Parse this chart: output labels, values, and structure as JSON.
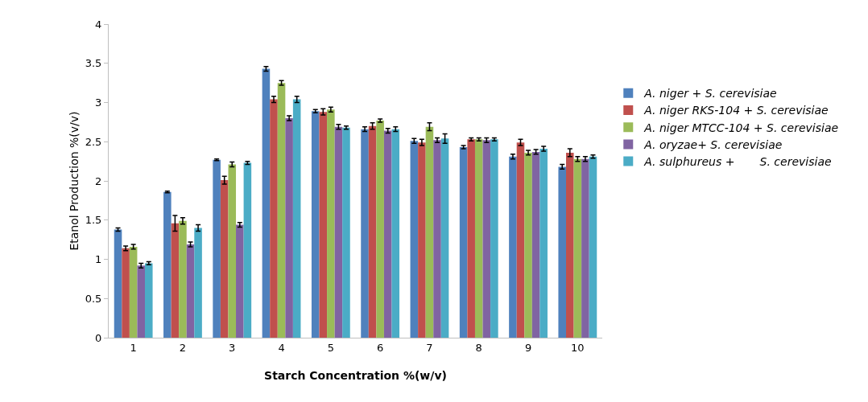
{
  "chart_data": {
    "type": "bar",
    "xlabel": "Starch Concentration %(w/v)",
    "ylabel": "Etanol Production %(v/v)",
    "categories": [
      "1",
      "2",
      "3",
      "4",
      "5",
      "6",
      "7",
      "8",
      "9",
      "10"
    ],
    "series": [
      {
        "name": "A. niger + S. cerevisiae",
        "color": "#4f81bd",
        "values": [
          1.38,
          1.86,
          2.27,
          3.43,
          2.89,
          2.66,
          2.51,
          2.43,
          2.31,
          2.18
        ],
        "errors": [
          0.02,
          0.01,
          0.01,
          0.03,
          0.02,
          0.03,
          0.03,
          0.02,
          0.03,
          0.03
        ]
      },
      {
        "name": "A. niger RKS-104 + S. cerevisiae",
        "color": "#c0504d",
        "values": [
          1.14,
          1.46,
          2.01,
          3.04,
          2.88,
          2.7,
          2.49,
          2.53,
          2.49,
          2.36
        ],
        "errors": [
          0.03,
          0.1,
          0.05,
          0.04,
          0.04,
          0.04,
          0.04,
          0.02,
          0.04,
          0.05
        ]
      },
      {
        "name": "A. niger MTCC-104 + S. cerevisiae",
        "color": "#9bbb59",
        "values": [
          1.16,
          1.49,
          2.21,
          3.25,
          2.91,
          2.77,
          2.69,
          2.53,
          2.36,
          2.28
        ],
        "errors": [
          0.03,
          0.04,
          0.03,
          0.03,
          0.03,
          0.02,
          0.05,
          0.02,
          0.03,
          0.03
        ]
      },
      {
        "name": "A. oryzae+ S. cerevisiae",
        "color": "#8064a2",
        "values": [
          0.92,
          1.19,
          1.44,
          2.8,
          2.69,
          2.64,
          2.52,
          2.52,
          2.37,
          2.28
        ],
        "errors": [
          0.03,
          0.03,
          0.03,
          0.03,
          0.03,
          0.03,
          0.03,
          0.03,
          0.03,
          0.03
        ]
      },
      {
        "name": "A. sulphureus +       S. cerevisiae",
        "color": "#4bacc6",
        "values": [
          0.95,
          1.4,
          2.23,
          3.04,
          2.68,
          2.66,
          2.54,
          2.53,
          2.41,
          2.31
        ],
        "errors": [
          0.02,
          0.04,
          0.02,
          0.04,
          0.02,
          0.03,
          0.06,
          0.02,
          0.03,
          0.02
        ]
      }
    ],
    "ylim": [
      0,
      4
    ],
    "yticks": [
      0,
      0.5,
      1,
      1.5,
      2,
      2.5,
      3,
      3.5,
      4
    ],
    "grid": false,
    "legend": "right"
  }
}
